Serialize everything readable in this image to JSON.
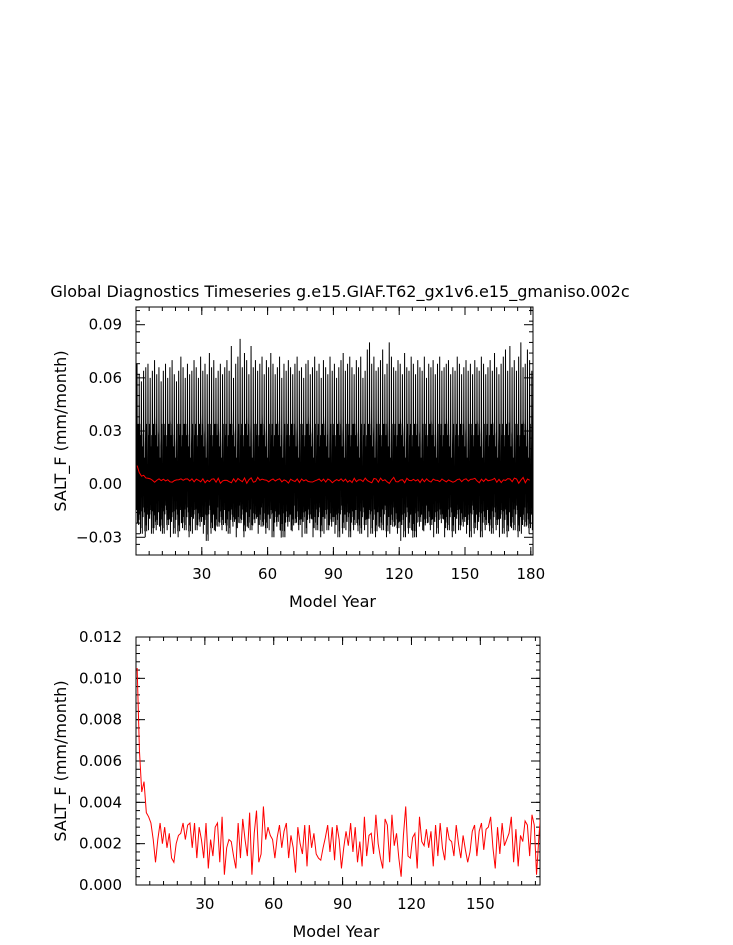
{
  "title": "Global Diagnostics Timeseries g.e15.GIAF.T62_gx1v6.e15_gmaniso.002c",
  "colors": {
    "monthly": "#000000",
    "annual": "#ff0000",
    "axes": "#000000"
  },
  "chart_data": [
    {
      "type": "line",
      "title": "Global Diagnostics Timeseries g.e15.GIAF.T62_gx1v6.e15_gmaniso.002c",
      "xlabel": "Model Year",
      "ylabel": "SALT_F (mm/month)",
      "xlim": [
        0,
        181
      ],
      "ylim": [
        -0.04,
        0.1
      ],
      "xticks": [
        30,
        60,
        90,
        120,
        150,
        180
      ],
      "xtick_labels": [
        "30",
        "60",
        "90",
        "120",
        "150",
        "180"
      ],
      "yticks": [
        -0.03,
        0,
        0.03,
        0.06,
        0.09
      ],
      "ytick_labels": [
        "−0.03",
        "0.00",
        "0.03",
        "0.06",
        "0.09"
      ],
      "grid": false,
      "series": [
        {
          "style": "monthly",
          "color": "#000000",
          "seasonal_max": [
            0.068,
            0.062,
            0.058,
            0.064,
            0.066,
            0.068,
            0.06,
            0.064,
            0.07,
            0.062,
            0.066,
            0.058,
            0.064,
            0.068,
            0.06,
            0.066,
            0.07,
            0.062,
            0.058,
            0.064,
            0.072,
            0.066,
            0.06,
            0.068,
            0.062,
            0.064,
            0.07,
            0.066,
            0.06,
            0.072,
            0.064,
            0.068,
            0.062,
            0.074,
            0.066,
            0.07,
            0.06,
            0.064,
            0.068,
            0.062,
            0.066,
            0.07,
            0.064,
            0.078,
            0.06,
            0.068,
            0.072,
            0.082,
            0.066,
            0.074,
            0.07,
            0.062,
            0.078,
            0.066,
            0.07,
            0.064,
            0.068,
            0.072,
            0.062,
            0.07,
            0.066,
            0.074,
            0.068,
            0.062,
            0.066,
            0.072,
            0.06,
            0.068,
            0.064,
            0.07,
            0.066,
            0.062,
            0.068,
            0.072,
            0.064,
            0.066,
            0.06,
            0.068,
            0.07,
            0.062,
            0.066,
            0.072,
            0.064,
            0.068,
            0.06,
            0.07,
            0.066,
            0.062,
            0.072,
            0.064,
            0.068,
            0.06,
            0.066,
            0.07,
            0.074,
            0.064,
            0.068,
            0.072,
            0.066,
            0.062,
            0.07,
            0.066,
            0.072,
            0.06,
            0.064,
            0.076,
            0.08,
            0.068,
            0.072,
            0.064,
            0.066,
            0.07,
            0.076,
            0.062,
            0.068,
            0.08,
            0.072,
            0.066,
            0.064,
            0.07,
            0.068,
            0.062,
            0.074,
            0.066,
            0.064,
            0.072,
            0.068,
            0.062,
            0.07,
            0.066,
            0.064,
            0.072,
            0.06,
            0.068,
            0.066,
            0.07,
            0.062,
            0.068,
            0.072,
            0.064,
            0.066,
            0.068,
            0.07,
            0.062,
            0.066,
            0.064,
            0.072,
            0.068,
            0.062,
            0.066,
            0.07,
            0.064,
            0.068,
            0.062,
            0.07,
            0.066,
            0.064,
            0.072,
            0.068,
            0.062,
            0.066,
            0.07,
            0.064,
            0.074,
            0.066,
            0.062,
            0.068,
            0.072,
            0.076,
            0.064,
            0.078,
            0.066,
            0.07,
            0.064,
            0.072,
            0.08,
            0.066,
            0.068,
            0.076,
            0.07,
            0.064,
            0.068,
            0.072
          ],
          "seasonal_min": [
            -0.022,
            -0.026,
            -0.028,
            -0.024,
            -0.03,
            -0.026,
            -0.022,
            -0.028,
            -0.032,
            -0.026,
            -0.024,
            -0.03,
            -0.028,
            -0.022,
            -0.026,
            -0.03,
            -0.024,
            -0.028,
            -0.026,
            -0.03,
            -0.022,
            -0.028,
            -0.026,
            -0.024,
            -0.03,
            -0.028,
            -0.022,
            -0.026,
            -0.03,
            -0.024,
            -0.028,
            -0.026,
            -0.032,
            -0.022,
            -0.028,
            -0.026,
            -0.03,
            -0.024,
            -0.028,
            -0.026,
            -0.022,
            -0.03,
            -0.028,
            -0.026,
            -0.024,
            -0.03,
            -0.028,
            -0.022,
            -0.026,
            -0.03,
            -0.024,
            -0.028,
            -0.026,
            -0.03,
            -0.022,
            -0.028,
            -0.026,
            -0.024,
            -0.03,
            -0.028,
            -0.026,
            -0.022,
            -0.03,
            -0.028,
            -0.024,
            -0.026,
            -0.034,
            -0.03,
            -0.028,
            -0.024,
            -0.026,
            -0.03,
            -0.022,
            -0.028,
            -0.026,
            -0.03,
            -0.024,
            -0.028,
            -0.026,
            -0.022,
            -0.03,
            -0.028,
            -0.026,
            -0.024,
            -0.03,
            -0.028,
            -0.022,
            -0.026,
            -0.03,
            -0.024,
            -0.028,
            -0.026,
            -0.03,
            -0.022,
            -0.028,
            -0.026,
            -0.024,
            -0.03,
            -0.028,
            -0.026,
            -0.022,
            -0.03,
            -0.028,
            -0.024,
            -0.026,
            -0.03,
            -0.022,
            -0.028,
            -0.026,
            -0.03,
            -0.024,
            -0.028,
            -0.026,
            -0.022,
            -0.03,
            -0.028,
            -0.026,
            -0.024,
            -0.03,
            -0.028,
            -0.032,
            -0.026,
            -0.03,
            -0.024,
            -0.028,
            -0.026,
            -0.034,
            -0.03,
            -0.028,
            -0.024,
            -0.026,
            -0.03,
            -0.022,
            -0.028,
            -0.026,
            -0.03,
            -0.024,
            -0.028,
            -0.026,
            -0.022,
            -0.03,
            -0.028,
            -0.026,
            -0.024,
            -0.03,
            -0.028,
            -0.022,
            -0.026,
            -0.03,
            -0.024,
            -0.028,
            -0.026,
            -0.03,
            -0.022,
            -0.028,
            -0.026,
            -0.024,
            -0.03,
            -0.028,
            -0.026,
            -0.022,
            -0.03,
            -0.028,
            -0.024,
            -0.026,
            -0.03,
            -0.022,
            -0.028,
            -0.026,
            -0.03,
            -0.024,
            -0.028,
            -0.026,
            -0.022,
            -0.03,
            -0.028,
            -0.026,
            -0.024,
            -0.03,
            -0.028,
            -0.026
          ]
        },
        {
          "style": "annual",
          "color": "#ff0000",
          "values": [
            0.0105,
            0.0065,
            0.0045,
            0.005,
            0.0035,
            0.0033,
            0.003,
            0.0022,
            0.0011,
            0.0022,
            0.003,
            0.002,
            0.0028,
            0.0018,
            0.0025,
            0.0013,
            0.0011,
            0.002,
            0.0024,
            0.0025,
            0.003,
            0.0022,
            0.0029,
            0.003,
            0.0018,
            0.003,
            0.0013,
            0.0028,
            0.0022,
            0.0013,
            0.003,
            0.0008,
            0.0022,
            0.0014,
            0.0028,
            0.003,
            0.0011,
            0.0033,
            0.0005,
            0.0018,
            0.0022,
            0.0021,
            0.0014,
            0.0008,
            0.003,
            0.0013,
            0.0032,
            0.0022,
            0.0014,
            0.0035,
            0.0005,
            0.0025,
            0.0036,
            0.0011,
            0.0015,
            0.0038,
            0.0022,
            0.0028,
            0.0024,
            0.0022,
            0.0013,
            0.0023,
            0.0029,
            0.0018,
            0.0026,
            0.003,
            0.0013,
            0.0024,
            0.0018,
            0.0006,
            0.0028,
            0.002,
            0.0015,
            0.0029,
            0.0009,
            0.0029,
            0.0018,
            0.0025,
            0.0015,
            0.0013,
            0.0012,
            0.0018,
            0.0023,
            0.0029,
            0.0016,
            0.0028,
            0.0012,
            0.0029,
            0.0022,
            0.0008,
            0.0018,
            0.0026,
            0.0019,
            0.003,
            0.0016,
            0.0028,
            0.0011,
            0.0021,
            0.0009,
            0.0033,
            0.0014,
            0.0024,
            0.0025,
            0.0015,
            0.0034,
            0.002,
            0.0013,
            0.0008,
            0.0032,
            0.0029,
            0.0011,
            0.0034,
            0.0019,
            0.0025,
            0.0013,
            0.0004,
            0.0024,
            0.0038,
            0.0014,
            0.0013,
            0.0023,
            0.0025,
            0.0008,
            0.0033,
            0.0021,
            0.0019,
            0.0027,
            0.0018,
            0.0026,
            0.0009,
            0.0029,
            0.0014,
            0.003,
            0.0018,
            0.0012,
            0.0028,
            0.0022,
            0.0021,
            0.0014,
            0.0029,
            0.002,
            0.0013,
            0.0024,
            0.0017,
            0.0011,
            0.0016,
            0.0026,
            0.0029,
            0.0014,
            0.0026,
            0.003,
            0.0017,
            0.0027,
            0.0028,
            0.0033,
            0.0018,
            0.0008,
            0.0028,
            0.0015,
            0.003,
            0.0019,
            0.0022,
            0.0025,
            0.0033,
            0.0011,
            0.0027,
            0.0009,
            0.0024,
            0.0021,
            0.0031,
            0.0029,
            0.0014,
            0.0034,
            0.0029,
            0.0005,
            0.0023,
            0.0038,
            0.0008,
            0.0029,
            0.0022
          ]
        }
      ]
    },
    {
      "type": "line",
      "xlabel": "Model Year",
      "ylabel": "SALT_F (mm/month)",
      "xlim": [
        0,
        176
      ],
      "ylim": [
        0,
        0.012
      ],
      "xticks": [
        30,
        60,
        90,
        120,
        150
      ],
      "xtick_labels": [
        "30",
        "60",
        "90",
        "120",
        "150"
      ],
      "yticks": [
        0,
        0.002,
        0.004,
        0.006,
        0.008,
        0.01,
        0.012
      ],
      "ytick_labels": [
        "0.000",
        "0.002",
        "0.004",
        "0.006",
        "0.008",
        "0.010",
        "0.012"
      ],
      "grid": false,
      "series": [
        {
          "style": "annual",
          "color": "#ff0000",
          "values": [
            0.0105,
            0.0065,
            0.0045,
            0.005,
            0.0035,
            0.0033,
            0.003,
            0.0022,
            0.0011,
            0.0022,
            0.003,
            0.002,
            0.0028,
            0.0018,
            0.0025,
            0.0013,
            0.0011,
            0.002,
            0.0024,
            0.0025,
            0.003,
            0.0022,
            0.0029,
            0.003,
            0.0018,
            0.003,
            0.0013,
            0.0028,
            0.0022,
            0.0013,
            0.003,
            0.0008,
            0.0022,
            0.0014,
            0.0028,
            0.003,
            0.0011,
            0.0033,
            0.0005,
            0.0018,
            0.0022,
            0.0021,
            0.0014,
            0.0008,
            0.003,
            0.0013,
            0.0032,
            0.0022,
            0.0014,
            0.0035,
            0.0005,
            0.0025,
            0.0036,
            0.0011,
            0.0015,
            0.0038,
            0.0022,
            0.0028,
            0.0024,
            0.0022,
            0.0013,
            0.0023,
            0.0029,
            0.0018,
            0.0026,
            0.003,
            0.0013,
            0.0024,
            0.0018,
            0.0006,
            0.0028,
            0.002,
            0.0015,
            0.0029,
            0.0009,
            0.0029,
            0.0018,
            0.0025,
            0.0015,
            0.0013,
            0.0012,
            0.0018,
            0.0023,
            0.0029,
            0.0016,
            0.0028,
            0.0012,
            0.0029,
            0.0022,
            0.0008,
            0.0018,
            0.0026,
            0.0019,
            0.003,
            0.0016,
            0.0028,
            0.0011,
            0.0021,
            0.0009,
            0.0033,
            0.0014,
            0.0024,
            0.0025,
            0.0015,
            0.0034,
            0.002,
            0.0013,
            0.0008,
            0.0032,
            0.0029,
            0.0011,
            0.0034,
            0.0019,
            0.0025,
            0.0013,
            0.0004,
            0.0024,
            0.0038,
            0.0014,
            0.0013,
            0.0023,
            0.0025,
            0.0008,
            0.0033,
            0.0021,
            0.0019,
            0.0027,
            0.0018,
            0.0026,
            0.0009,
            0.0029,
            0.0014,
            0.003,
            0.0018,
            0.0012,
            0.0028,
            0.0022,
            0.0021,
            0.0014,
            0.0029,
            0.002,
            0.0013,
            0.0024,
            0.0017,
            0.0011,
            0.0016,
            0.0026,
            0.0029,
            0.0014,
            0.0026,
            0.003,
            0.0017,
            0.0027,
            0.0028,
            0.0033,
            0.0018,
            0.0008,
            0.0028,
            0.0015,
            0.003,
            0.0019,
            0.0022,
            0.0025,
            0.0033,
            0.0011,
            0.0027,
            0.0009,
            0.0024,
            0.0021,
            0.0031,
            0.0029,
            0.0014,
            0.0034,
            0.0029,
            0.0005,
            0.0023,
            0.0038,
            0.0008,
            0.0029,
            0.0022
          ]
        }
      ]
    }
  ]
}
